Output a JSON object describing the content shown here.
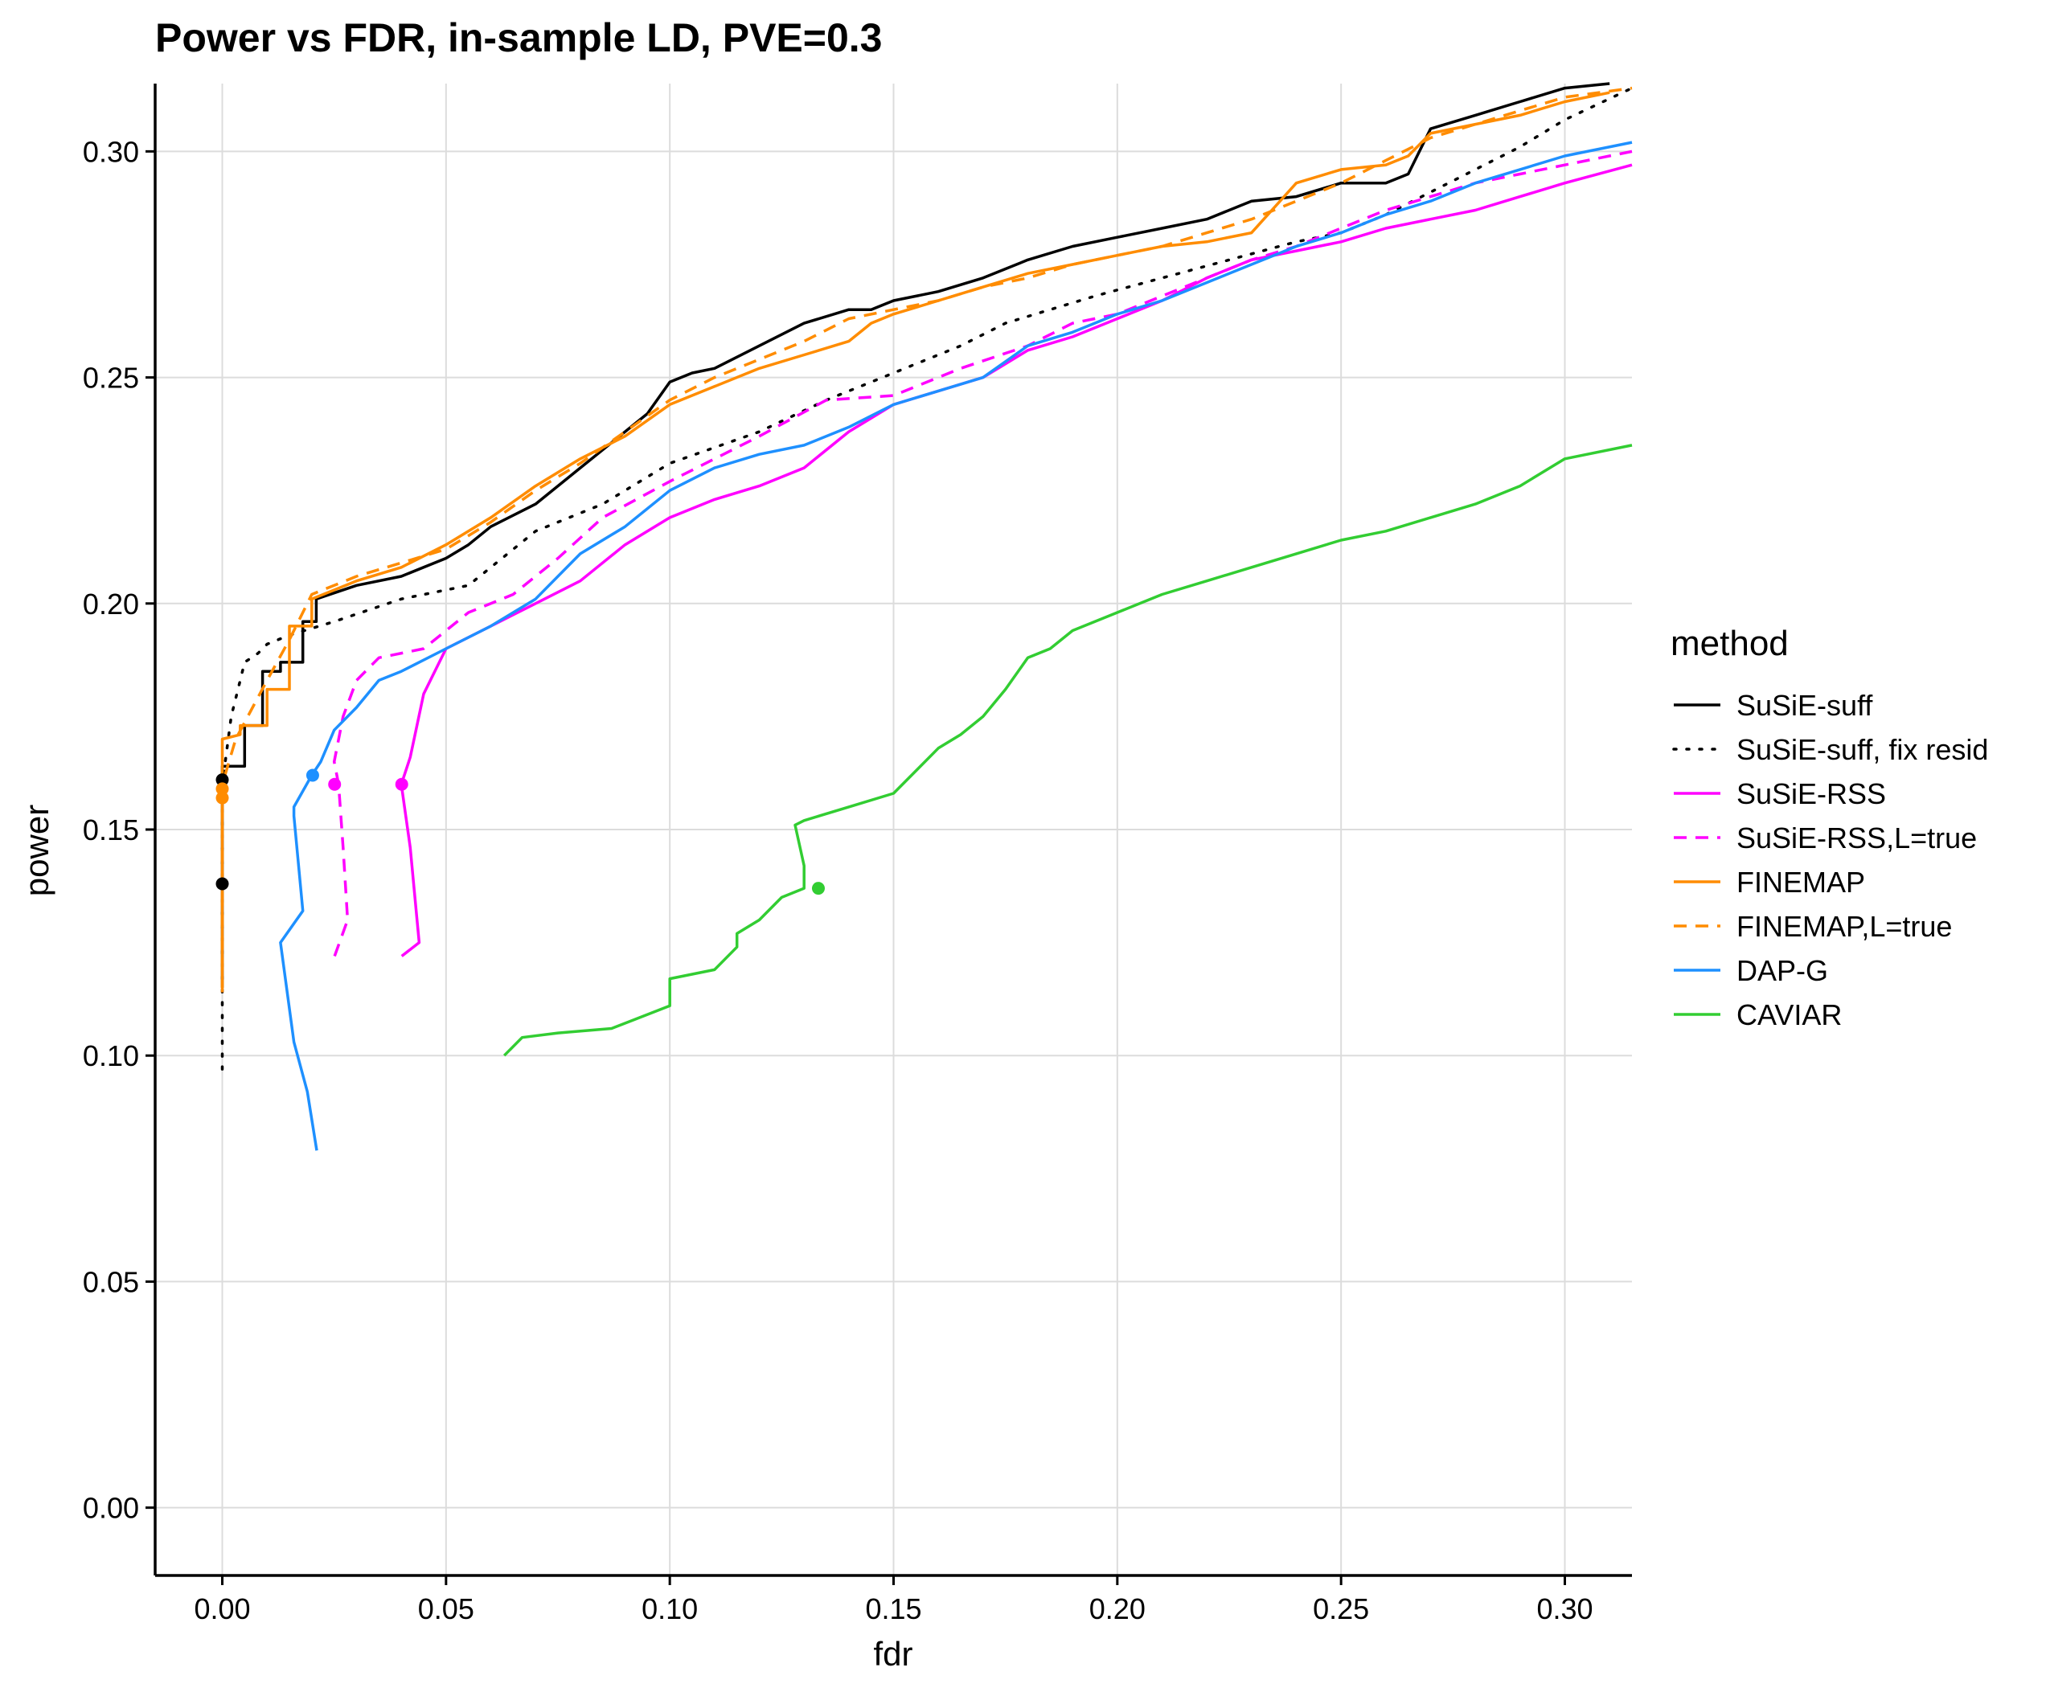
{
  "chart_data": {
    "type": "line",
    "title": "Power vs FDR, in-sample LD, PVE=0.3",
    "xlabel": "fdr",
    "ylabel": "power",
    "xlim": [
      -0.015,
      0.315
    ],
    "ylim": [
      -0.015,
      0.315
    ],
    "x_ticks": [
      0.0,
      0.05,
      0.1,
      0.15,
      0.2,
      0.25,
      0.3
    ],
    "x_tick_labels": [
      "0.00",
      "0.05",
      "0.10",
      "0.15",
      "0.20",
      "0.25",
      "0.30"
    ],
    "y_ticks": [
      0.0,
      0.05,
      0.1,
      0.15,
      0.2,
      0.25,
      0.3
    ],
    "y_tick_labels": [
      "0.00",
      "0.05",
      "0.10",
      "0.15",
      "0.20",
      "0.25",
      "0.30"
    ],
    "grid": true,
    "legend": {
      "title": "method",
      "position": "right"
    },
    "series": [
      {
        "name": "SuSiE-suff",
        "color": "#000000",
        "dash": "solid",
        "x": [
          0.0,
          0.0,
          0.0,
          0.005,
          0.005,
          0.009,
          0.009,
          0.013,
          0.013,
          0.018,
          0.018,
          0.021,
          0.021,
          0.03,
          0.04,
          0.05,
          0.055,
          0.06,
          0.07,
          0.075,
          0.08,
          0.09,
          0.095,
          0.1,
          0.105,
          0.11,
          0.12,
          0.13,
          0.14,
          0.145,
          0.15,
          0.16,
          0.17,
          0.18,
          0.19,
          0.2,
          0.21,
          0.22,
          0.23,
          0.24,
          0.25,
          0.26,
          0.265,
          0.27,
          0.28,
          0.29,
          0.3,
          0.31
        ],
        "y": [
          0.115,
          0.138,
          0.164,
          0.164,
          0.173,
          0.173,
          0.185,
          0.185,
          0.187,
          0.187,
          0.196,
          0.196,
          0.201,
          0.204,
          0.206,
          0.21,
          0.213,
          0.217,
          0.222,
          0.226,
          0.23,
          0.238,
          0.242,
          0.249,
          0.251,
          0.252,
          0.257,
          0.262,
          0.265,
          0.265,
          0.267,
          0.269,
          0.272,
          0.276,
          0.279,
          0.281,
          0.283,
          0.285,
          0.289,
          0.29,
          0.293,
          0.293,
          0.295,
          0.305,
          0.308,
          0.311,
          0.314,
          0.315
        ],
        "endpoints": [
          [
            0.0,
            0.161
          ],
          [
            0.0,
            0.138
          ]
        ]
      },
      {
        "name": "SuSiE-suff, fix resid",
        "color": "#000000",
        "dash": "dotted",
        "x": [
          0.0,
          0.0,
          0.0,
          0.002,
          0.004,
          0.005,
          0.008,
          0.01,
          0.015,
          0.025,
          0.04,
          0.055,
          0.07,
          0.085,
          0.1,
          0.12,
          0.135,
          0.145,
          0.155,
          0.165,
          0.175,
          0.185,
          0.195,
          0.21,
          0.225,
          0.24,
          0.25,
          0.26,
          0.27,
          0.28,
          0.29,
          0.3,
          0.315
        ],
        "y": [
          0.097,
          0.11,
          0.16,
          0.175,
          0.183,
          0.187,
          0.189,
          0.191,
          0.193,
          0.196,
          0.201,
          0.204,
          0.216,
          0.222,
          0.231,
          0.238,
          0.245,
          0.249,
          0.253,
          0.257,
          0.262,
          0.265,
          0.268,
          0.272,
          0.276,
          0.28,
          0.282,
          0.286,
          0.291,
          0.296,
          0.301,
          0.307,
          0.314
        ]
      },
      {
        "name": "SuSiE-RSS",
        "color": "#ff00ff",
        "dash": "solid",
        "x": [
          0.0401,
          0.044,
          0.042,
          0.04,
          0.042,
          0.045,
          0.05,
          0.06,
          0.07,
          0.08,
          0.09,
          0.1,
          0.11,
          0.12,
          0.13,
          0.14,
          0.15,
          0.16,
          0.17,
          0.18,
          0.19,
          0.2,
          0.21,
          0.22,
          0.23,
          0.24,
          0.25,
          0.26,
          0.27,
          0.28,
          0.29,
          0.3,
          0.315
        ],
        "y": [
          0.122,
          0.125,
          0.146,
          0.16,
          0.166,
          0.18,
          0.19,
          0.195,
          0.2,
          0.205,
          0.213,
          0.219,
          0.223,
          0.226,
          0.23,
          0.238,
          0.244,
          0.247,
          0.25,
          0.256,
          0.259,
          0.263,
          0.267,
          0.272,
          0.276,
          0.278,
          0.28,
          0.283,
          0.285,
          0.287,
          0.29,
          0.293,
          0.297
        ],
        "endpoints": [
          [
            0.0401,
            0.16
          ]
        ]
      },
      {
        "name": "SuSiE-RSS,L=true",
        "color": "#ff00ff",
        "dash": "dashed",
        "x": [
          0.0251,
          0.028,
          0.027,
          0.026,
          0.025,
          0.027,
          0.03,
          0.035,
          0.045,
          0.055,
          0.065,
          0.075,
          0.085,
          0.1,
          0.11,
          0.12,
          0.135,
          0.15,
          0.165,
          0.18,
          0.19,
          0.2,
          0.21,
          0.22,
          0.23,
          0.24,
          0.25,
          0.26,
          0.27,
          0.28,
          0.29,
          0.3,
          0.315
        ],
        "y": [
          0.122,
          0.13,
          0.146,
          0.16,
          0.165,
          0.175,
          0.183,
          0.188,
          0.19,
          0.198,
          0.202,
          0.21,
          0.219,
          0.227,
          0.232,
          0.237,
          0.245,
          0.246,
          0.252,
          0.257,
          0.262,
          0.264,
          0.268,
          0.272,
          0.276,
          0.279,
          0.283,
          0.287,
          0.29,
          0.293,
          0.295,
          0.297,
          0.3
        ],
        "endpoints": [
          [
            0.0251,
            0.16
          ]
        ]
      },
      {
        "name": "FINEMAP",
        "color": "#ff8c00",
        "dash": "solid",
        "x": [
          0.0,
          0.0,
          0.0,
          0.0,
          0.004,
          0.004,
          0.01,
          0.01,
          0.015,
          0.015,
          0.02,
          0.02,
          0.03,
          0.04,
          0.05,
          0.06,
          0.07,
          0.08,
          0.09,
          0.1,
          0.11,
          0.12,
          0.13,
          0.14,
          0.145,
          0.15,
          0.16,
          0.17,
          0.18,
          0.19,
          0.2,
          0.21,
          0.22,
          0.23,
          0.24,
          0.25,
          0.26,
          0.265,
          0.27,
          0.28,
          0.29,
          0.3,
          0.31
        ],
        "y": [
          0.115,
          0.157,
          0.16,
          0.17,
          0.171,
          0.173,
          0.173,
          0.181,
          0.181,
          0.195,
          0.195,
          0.201,
          0.205,
          0.208,
          0.213,
          0.219,
          0.226,
          0.232,
          0.237,
          0.244,
          0.248,
          0.252,
          0.255,
          0.258,
          0.262,
          0.264,
          0.267,
          0.27,
          0.273,
          0.275,
          0.277,
          0.279,
          0.28,
          0.282,
          0.293,
          0.296,
          0.297,
          0.299,
          0.304,
          0.306,
          0.308,
          0.311,
          0.313
        ],
        "endpoints": [
          [
            0.0,
            0.157
          ],
          [
            0.0,
            0.159
          ]
        ]
      },
      {
        "name": "FINEMAP,L=true",
        "color": "#ff8c00",
        "dash": "dashed",
        "x": [
          0.0,
          0.0,
          0.003,
          0.01,
          0.015,
          0.02,
          0.03,
          0.04,
          0.05,
          0.06,
          0.07,
          0.08,
          0.09,
          0.1,
          0.11,
          0.12,
          0.13,
          0.14,
          0.15,
          0.16,
          0.17,
          0.18,
          0.19,
          0.2,
          0.21,
          0.22,
          0.23,
          0.24,
          0.25,
          0.26,
          0.27,
          0.28,
          0.29,
          0.3,
          0.315
        ],
        "y": [
          0.114,
          0.16,
          0.17,
          0.183,
          0.192,
          0.202,
          0.206,
          0.209,
          0.212,
          0.218,
          0.225,
          0.231,
          0.238,
          0.245,
          0.25,
          0.254,
          0.258,
          0.263,
          0.265,
          0.267,
          0.27,
          0.272,
          0.275,
          0.277,
          0.279,
          0.282,
          0.285,
          0.289,
          0.293,
          0.298,
          0.303,
          0.306,
          0.309,
          0.312,
          0.314
        ]
      },
      {
        "name": "DAP-G",
        "color": "#1e90ff",
        "dash": "solid",
        "x": [
          0.0211,
          0.019,
          0.016,
          0.013,
          0.018,
          0.016,
          0.016,
          0.02,
          0.022,
          0.025,
          0.03,
          0.035,
          0.04,
          0.05,
          0.06,
          0.07,
          0.08,
          0.09,
          0.1,
          0.11,
          0.12,
          0.13,
          0.14,
          0.15,
          0.16,
          0.17,
          0.18,
          0.19,
          0.2,
          0.21,
          0.22,
          0.23,
          0.24,
          0.25,
          0.26,
          0.27,
          0.28,
          0.29,
          0.3,
          0.315
        ],
        "y": [
          0.079,
          0.092,
          0.103,
          0.125,
          0.132,
          0.153,
          0.155,
          0.162,
          0.165,
          0.172,
          0.177,
          0.183,
          0.185,
          0.19,
          0.195,
          0.201,
          0.211,
          0.217,
          0.225,
          0.23,
          0.233,
          0.235,
          0.239,
          0.244,
          0.247,
          0.25,
          0.257,
          0.26,
          0.264,
          0.267,
          0.271,
          0.275,
          0.279,
          0.282,
          0.286,
          0.289,
          0.293,
          0.296,
          0.299,
          0.302
        ],
        "endpoints": [
          [
            0.0202,
            0.162
          ]
        ]
      },
      {
        "name": "CAVIAR",
        "color": "#32cd32",
        "dash": "solid",
        "x": [
          0.063,
          0.067,
          0.075,
          0.087,
          0.1,
          0.1,
          0.11,
          0.115,
          0.115,
          0.12,
          0.125,
          0.13,
          0.13,
          0.128,
          0.13,
          0.14,
          0.15,
          0.16,
          0.165,
          0.17,
          0.175,
          0.18,
          0.185,
          0.19,
          0.2,
          0.21,
          0.22,
          0.23,
          0.24,
          0.25,
          0.26,
          0.27,
          0.28,
          0.29,
          0.3,
          0.315
        ],
        "y": [
          0.1,
          0.104,
          0.105,
          0.106,
          0.111,
          0.117,
          0.119,
          0.124,
          0.127,
          0.13,
          0.135,
          0.137,
          0.142,
          0.151,
          0.152,
          0.155,
          0.158,
          0.168,
          0.171,
          0.175,
          0.181,
          0.188,
          0.19,
          0.194,
          0.198,
          0.202,
          0.205,
          0.208,
          0.211,
          0.214,
          0.216,
          0.219,
          0.222,
          0.226,
          0.232,
          0.235
        ],
        "endpoints": [
          [
            0.1332,
            0.137
          ]
        ]
      }
    ]
  }
}
